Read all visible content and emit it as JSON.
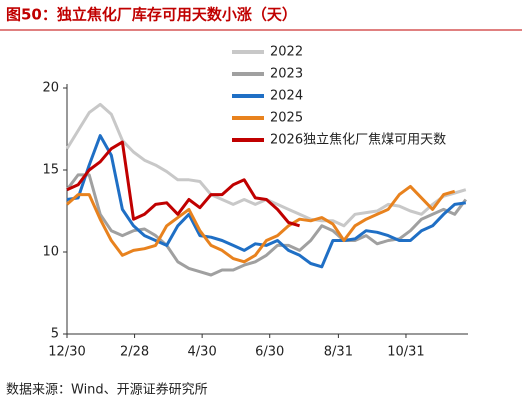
{
  "chart_data": {
    "type": "line",
    "title": "图50：独立焦化厂库存可用天数小涨（天）",
    "source": "数据来源：Wind、开源证券研究所",
    "x": [
      0,
      10,
      20,
      30,
      40,
      50,
      60,
      70,
      80,
      90,
      100,
      110,
      120,
      130,
      140,
      150,
      160,
      170,
      180,
      190,
      200,
      210,
      220,
      230,
      240,
      250,
      260,
      270,
      280,
      290,
      300,
      310,
      320,
      330,
      340,
      350,
      360
    ],
    "xlim": [
      0,
      362
    ],
    "xticks": [
      {
        "value": 0,
        "label": "12/30"
      },
      {
        "value": 61,
        "label": "2/28"
      },
      {
        "value": 122,
        "label": "4/30"
      },
      {
        "value": 183,
        "label": "6/30"
      },
      {
        "value": 245,
        "label": "8/31"
      },
      {
        "value": 306,
        "label": "10/31"
      }
    ],
    "ylim": [
      5,
      20
    ],
    "yticks": [
      5,
      10,
      15,
      20
    ],
    "grid": false,
    "legend": "top",
    "series": [
      {
        "name": "2022",
        "color": "#c8c8c8",
        "values": [
          16.3,
          17.4,
          18.5,
          19.0,
          18.4,
          16.8,
          16.1,
          15.6,
          15.3,
          14.9,
          14.4,
          14.4,
          14.3,
          13.5,
          13.2,
          12.9,
          13.2,
          12.9,
          13.2,
          12.9,
          12.6,
          12.3,
          12.0,
          11.9,
          11.9,
          11.6,
          12.3,
          12.4,
          12.5,
          12.9,
          12.8,
          12.5,
          12.3,
          12.9,
          13.4,
          13.6,
          13.8
        ]
      },
      {
        "name": "2023",
        "color": "#a0a0a0",
        "values": [
          13.8,
          14.7,
          14.7,
          12.3,
          11.3,
          11.0,
          11.3,
          11.4,
          11.0,
          10.4,
          9.4,
          9.0,
          8.8,
          8.6,
          8.9,
          8.9,
          9.2,
          9.4,
          9.8,
          10.4,
          10.4,
          10.1,
          10.7,
          11.6,
          11.3,
          10.7,
          10.7,
          11.0,
          10.5,
          10.7,
          10.8,
          11.3,
          12.0,
          12.3,
          12.6,
          12.3,
          13.2
        ]
      },
      {
        "name": "2024",
        "color": "#1f6fc5",
        "values": [
          13.2,
          13.3,
          15.3,
          17.1,
          15.9,
          12.6,
          11.6,
          11.0,
          10.7,
          10.4,
          11.6,
          12.3,
          11.0,
          10.9,
          10.7,
          10.4,
          10.1,
          10.5,
          10.4,
          10.7,
          10.1,
          9.8,
          9.3,
          9.1,
          10.7,
          10.7,
          10.8,
          11.3,
          11.2,
          11.0,
          10.7,
          10.7,
          11.3,
          11.6,
          12.3,
          12.9,
          13.0
        ]
      },
      {
        "name": "2025",
        "color": "#e8821e",
        "values": [
          12.9,
          13.5,
          13.5,
          12.0,
          10.7,
          9.8,
          10.1,
          10.2,
          10.4,
          11.6,
          12.1,
          12.6,
          11.3,
          10.4,
          10.1,
          9.6,
          9.4,
          9.8,
          10.7,
          11.0,
          11.6,
          12.0,
          11.9,
          12.1,
          11.7,
          10.7,
          11.6,
          12.0,
          12.3,
          12.6,
          13.5,
          14.0,
          13.3,
          12.6,
          13.5,
          13.7,
          null
        ]
      },
      {
        "name": "2026独立焦化厂焦煤可用天数",
        "color": "#c00000",
        "values": [
          13.8,
          14.1,
          15.0,
          15.5,
          16.3,
          16.7,
          12.0,
          12.3,
          12.9,
          13.0,
          12.3,
          13.2,
          12.7,
          13.5,
          13.5,
          14.1,
          14.4,
          13.3,
          13.2,
          12.6,
          11.8,
          11.6,
          null,
          null,
          null,
          null,
          null,
          null,
          null,
          null,
          null,
          null,
          null,
          null,
          null,
          null,
          null
        ]
      }
    ]
  }
}
